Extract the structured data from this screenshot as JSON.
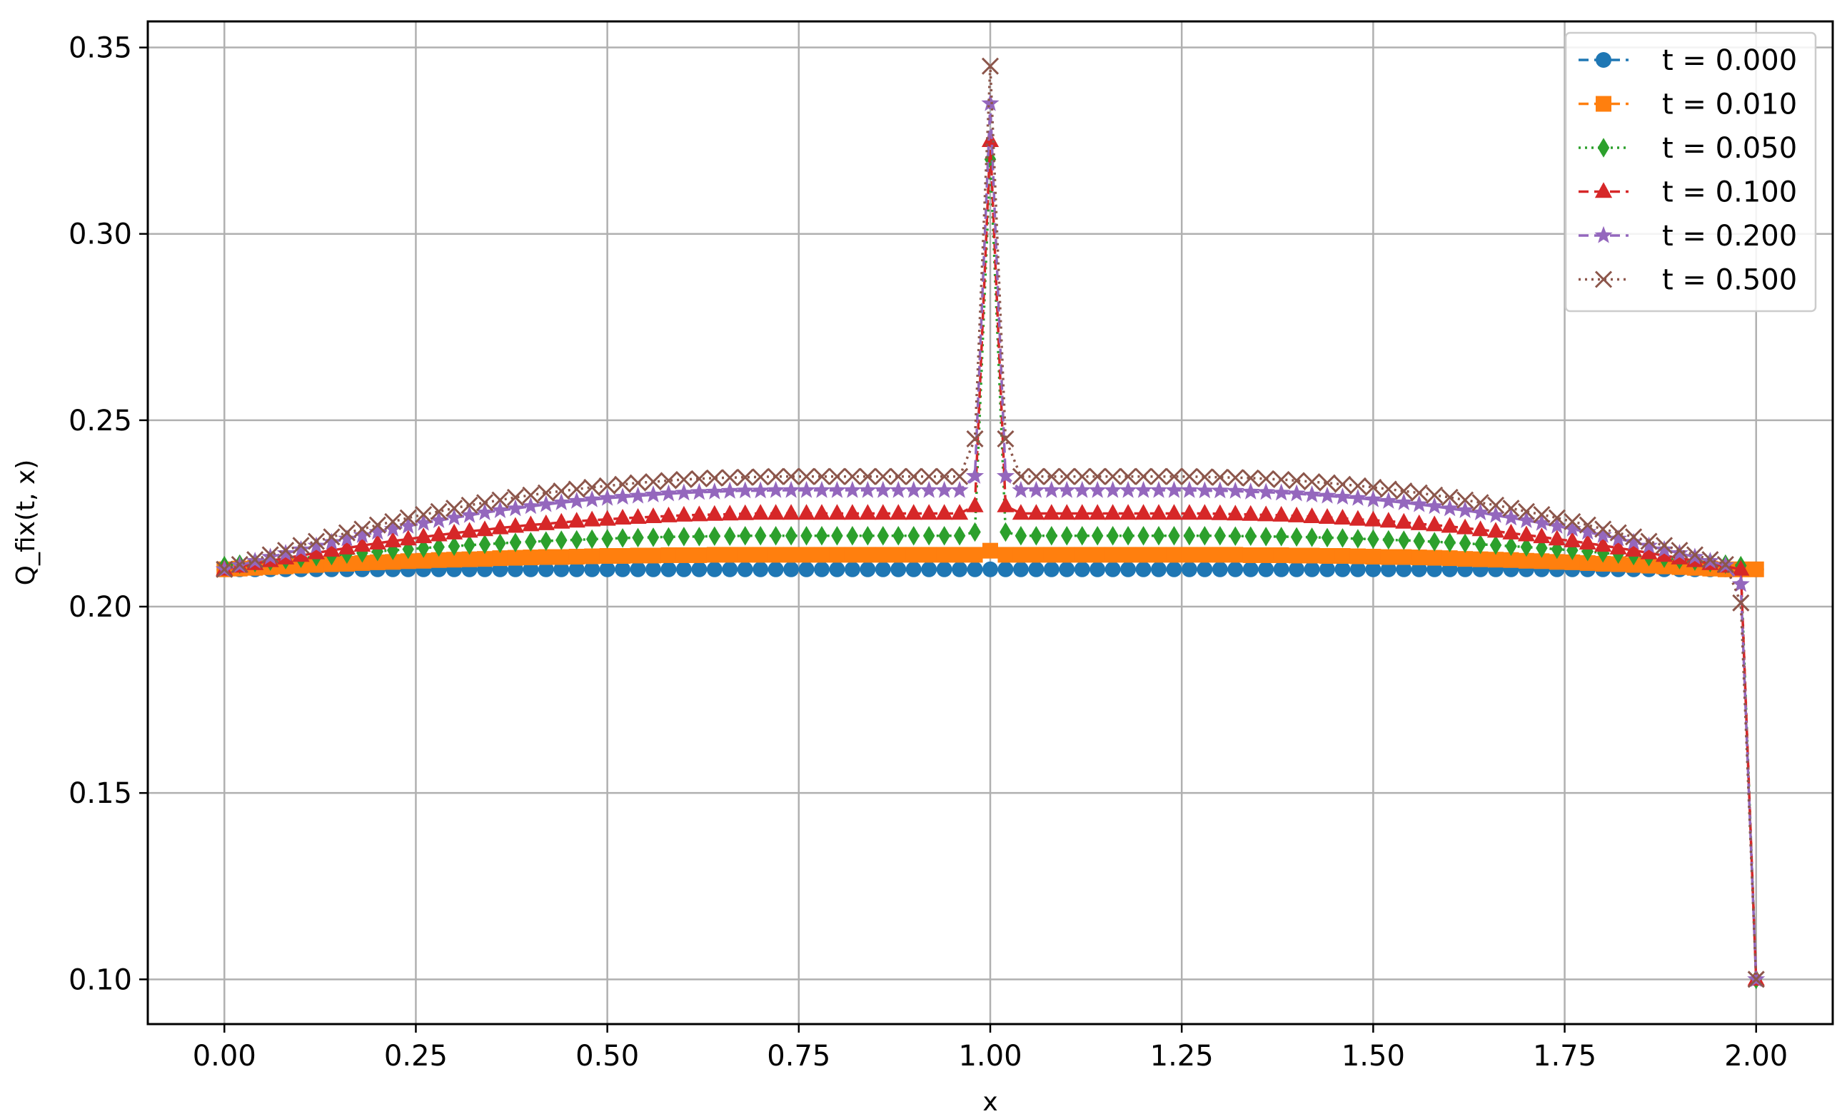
{
  "chart_data": {
    "type": "line",
    "title": "",
    "xlabel": "x",
    "ylabel": "Q_fix(t, x)",
    "xlim": [
      -0.1,
      2.1
    ],
    "ylim": [
      0.088,
      0.357
    ],
    "xticks": [
      0.0,
      0.25,
      0.5,
      0.75,
      1.0,
      1.25,
      1.5,
      1.75,
      2.0
    ],
    "xtick_labels": [
      "0.00",
      "0.25",
      "0.50",
      "0.75",
      "1.00",
      "1.25",
      "1.50",
      "1.75",
      "2.00"
    ],
    "yticks": [
      0.1,
      0.15,
      0.2,
      0.25,
      0.3,
      0.35
    ],
    "ytick_labels": [
      "0.10",
      "0.15",
      "0.20",
      "0.25",
      "0.30",
      "0.35"
    ],
    "grid": true,
    "legend_position": "top-right",
    "x": [
      0.0,
      0.02,
      0.04,
      0.06,
      0.08,
      0.1,
      0.12,
      0.14,
      0.16,
      0.18,
      0.2,
      0.22,
      0.24,
      0.26,
      0.28,
      0.3,
      0.32,
      0.34,
      0.36,
      0.38,
      0.4,
      0.42,
      0.44,
      0.46,
      0.48,
      0.5,
      0.52,
      0.54,
      0.56,
      0.58,
      0.6,
      0.62,
      0.64,
      0.66,
      0.68,
      0.7,
      0.72,
      0.74,
      0.76,
      0.78,
      0.8,
      0.82,
      0.84,
      0.86,
      0.88,
      0.9,
      0.92,
      0.94,
      0.96,
      0.98,
      1.0,
      1.02,
      1.04,
      1.06,
      1.08,
      1.1,
      1.12,
      1.14,
      1.16,
      1.18,
      1.2,
      1.22,
      1.24,
      1.26,
      1.28,
      1.3,
      1.32,
      1.34,
      1.36,
      1.38,
      1.4,
      1.42,
      1.44,
      1.46,
      1.48,
      1.5,
      1.52,
      1.54,
      1.56,
      1.58,
      1.6,
      1.62,
      1.64,
      1.66,
      1.68,
      1.7,
      1.72,
      1.74,
      1.76,
      1.78,
      1.8,
      1.82,
      1.84,
      1.86,
      1.88,
      1.9,
      1.92,
      1.94,
      1.96,
      1.98,
      2.0
    ],
    "series": [
      {
        "name": "t = 0.000",
        "color": "#1f77b4",
        "linestyle": "dashed",
        "marker": "circle",
        "values": [
          0.21,
          0.21,
          0.21,
          0.21,
          0.21,
          0.21,
          0.21,
          0.21,
          0.21,
          0.21,
          0.21,
          0.21,
          0.21,
          0.21,
          0.21,
          0.21,
          0.21,
          0.21,
          0.21,
          0.21,
          0.21,
          0.21,
          0.21,
          0.21,
          0.21,
          0.21,
          0.21,
          0.21,
          0.21,
          0.21,
          0.21,
          0.21,
          0.21,
          0.21,
          0.21,
          0.21,
          0.21,
          0.21,
          0.21,
          0.21,
          0.21,
          0.21,
          0.21,
          0.21,
          0.21,
          0.21,
          0.21,
          0.21,
          0.21,
          0.21,
          0.21,
          0.21,
          0.21,
          0.21,
          0.21,
          0.21,
          0.21,
          0.21,
          0.21,
          0.21,
          0.21,
          0.21,
          0.21,
          0.21,
          0.21,
          0.21,
          0.21,
          0.21,
          0.21,
          0.21,
          0.21,
          0.21,
          0.21,
          0.21,
          0.21,
          0.21,
          0.21,
          0.21,
          0.21,
          0.21,
          0.21,
          0.21,
          0.21,
          0.21,
          0.21,
          0.21,
          0.21,
          0.21,
          0.21,
          0.21,
          0.21,
          0.21,
          0.21,
          0.21,
          0.21,
          0.21,
          0.21,
          0.21,
          0.21,
          0.21,
          0.21
        ]
      },
      {
        "name": "t = 0.010",
        "color": "#ff7f0e",
        "linestyle": "dashed",
        "marker": "square",
        "values": [
          0.21,
          0.2102,
          0.2104,
          0.2106,
          0.2108,
          0.211,
          0.2112,
          0.2114,
          0.2115,
          0.2117,
          0.2119,
          0.212,
          0.2122,
          0.2123,
          0.2125,
          0.2126,
          0.2127,
          0.2128,
          0.213,
          0.2131,
          0.2132,
          0.2133,
          0.2133,
          0.2134,
          0.2135,
          0.2136,
          0.2136,
          0.2137,
          0.2137,
          0.2138,
          0.2138,
          0.2138,
          0.2139,
          0.2139,
          0.2139,
          0.2139,
          0.2139,
          0.2139,
          0.2139,
          0.2139,
          0.2139,
          0.2139,
          0.2139,
          0.2139,
          0.2139,
          0.2139,
          0.2139,
          0.2139,
          0.2139,
          0.2139,
          0.215,
          0.2139,
          0.2139,
          0.2139,
          0.2139,
          0.2139,
          0.2139,
          0.2139,
          0.2139,
          0.2139,
          0.2139,
          0.2139,
          0.2139,
          0.2139,
          0.2139,
          0.2139,
          0.2139,
          0.2138,
          0.2138,
          0.2138,
          0.2137,
          0.2137,
          0.2136,
          0.2136,
          0.2135,
          0.2134,
          0.2133,
          0.2133,
          0.2132,
          0.2131,
          0.213,
          0.2128,
          0.2127,
          0.2126,
          0.2125,
          0.2123,
          0.2122,
          0.212,
          0.2119,
          0.2117,
          0.2115,
          0.2114,
          0.2112,
          0.211,
          0.2108,
          0.2106,
          0.2104,
          0.2102,
          0.21,
          0.21,
          0.21
        ]
      },
      {
        "name": "t = 0.050",
        "color": "#2ca02c",
        "linestyle": "dotted",
        "marker": "diamond",
        "values": [
          0.211,
          0.2114,
          0.2118,
          0.2122,
          0.2126,
          0.213,
          0.2134,
          0.2137,
          0.2141,
          0.2144,
          0.2148,
          0.2151,
          0.2154,
          0.2157,
          0.216,
          0.2162,
          0.2165,
          0.2167,
          0.217,
          0.2172,
          0.2174,
          0.2176,
          0.2178,
          0.2179,
          0.2181,
          0.2182,
          0.2184,
          0.2185,
          0.2186,
          0.2187,
          0.2188,
          0.2188,
          0.2189,
          0.2189,
          0.219,
          0.219,
          0.219,
          0.219,
          0.219,
          0.219,
          0.219,
          0.219,
          0.219,
          0.219,
          0.219,
          0.219,
          0.219,
          0.219,
          0.219,
          0.22,
          0.32,
          0.22,
          0.219,
          0.219,
          0.219,
          0.219,
          0.219,
          0.219,
          0.219,
          0.219,
          0.219,
          0.219,
          0.219,
          0.219,
          0.219,
          0.219,
          0.2189,
          0.2189,
          0.2188,
          0.2188,
          0.2187,
          0.2186,
          0.2185,
          0.2184,
          0.2182,
          0.2181,
          0.2179,
          0.2178,
          0.2176,
          0.2174,
          0.2172,
          0.217,
          0.2167,
          0.2165,
          0.2162,
          0.216,
          0.2157,
          0.2154,
          0.2151,
          0.2148,
          0.2144,
          0.2141,
          0.2137,
          0.2134,
          0.213,
          0.2126,
          0.2122,
          0.2118,
          0.2114,
          0.211,
          0.1
        ]
      },
      {
        "name": "t = 0.100",
        "color": "#d62728",
        "linestyle": "dashed",
        "marker": "triangle",
        "values": [
          0.21,
          0.2108,
          0.2115,
          0.2123,
          0.213,
          0.2137,
          0.2144,
          0.2151,
          0.2157,
          0.2164,
          0.217,
          0.2176,
          0.2181,
          0.2187,
          0.2192,
          0.2197,
          0.2202,
          0.2206,
          0.2211,
          0.2215,
          0.2219,
          0.2222,
          0.2226,
          0.2229,
          0.2232,
          0.2234,
          0.2237,
          0.2239,
          0.2241,
          0.2243,
          0.2245,
          0.2246,
          0.2247,
          0.2248,
          0.2249,
          0.225,
          0.225,
          0.225,
          0.225,
          0.225,
          0.225,
          0.225,
          0.225,
          0.225,
          0.225,
          0.225,
          0.225,
          0.225,
          0.225,
          0.227,
          0.325,
          0.227,
          0.225,
          0.225,
          0.225,
          0.225,
          0.225,
          0.225,
          0.225,
          0.225,
          0.225,
          0.225,
          0.225,
          0.225,
          0.225,
          0.2249,
          0.2248,
          0.2247,
          0.2246,
          0.2245,
          0.2243,
          0.2241,
          0.2239,
          0.2237,
          0.2234,
          0.2232,
          0.2229,
          0.2226,
          0.2222,
          0.2219,
          0.2215,
          0.2211,
          0.2206,
          0.2202,
          0.2197,
          0.2192,
          0.2187,
          0.2181,
          0.2176,
          0.217,
          0.2164,
          0.2157,
          0.2151,
          0.2144,
          0.2137,
          0.213,
          0.2123,
          0.2115,
          0.2108,
          0.21,
          0.1
        ]
      },
      {
        "name": "t = 0.200",
        "color": "#9467bd",
        "linestyle": "dashed",
        "marker": "star",
        "values": [
          0.21,
          0.2111,
          0.2122,
          0.2133,
          0.2143,
          0.2153,
          0.2163,
          0.2173,
          0.2182,
          0.2191,
          0.22,
          0.2208,
          0.2216,
          0.2224,
          0.2231,
          0.2238,
          0.2245,
          0.2252,
          0.2258,
          0.2263,
          0.2269,
          0.2274,
          0.2279,
          0.2283,
          0.2287,
          0.2291,
          0.2294,
          0.2297,
          0.23,
          0.2303,
          0.2305,
          0.2307,
          0.2308,
          0.231,
          0.2311,
          0.2311,
          0.2312,
          0.2312,
          0.2312,
          0.2312,
          0.2312,
          0.2312,
          0.2312,
          0.2312,
          0.2312,
          0.2312,
          0.2312,
          0.2312,
          0.2312,
          0.235,
          0.335,
          0.235,
          0.2312,
          0.2312,
          0.2312,
          0.2312,
          0.2312,
          0.2312,
          0.2312,
          0.2312,
          0.2312,
          0.2312,
          0.2312,
          0.2312,
          0.2311,
          0.2311,
          0.231,
          0.2308,
          0.2307,
          0.2305,
          0.2303,
          0.23,
          0.2297,
          0.2294,
          0.2291,
          0.2287,
          0.2283,
          0.2279,
          0.2274,
          0.2269,
          0.2263,
          0.2258,
          0.2252,
          0.2245,
          0.2238,
          0.2231,
          0.2224,
          0.2216,
          0.2208,
          0.22,
          0.2191,
          0.2182,
          0.2173,
          0.2163,
          0.2153,
          0.2143,
          0.2133,
          0.2122,
          0.2111,
          0.206,
          0.1
        ]
      },
      {
        "name": "t = 0.500",
        "color": "#8c564b",
        "linestyle": "dotted",
        "marker": "x",
        "values": [
          0.21,
          0.2113,
          0.2126,
          0.2139,
          0.2151,
          0.2164,
          0.2175,
          0.2187,
          0.2198,
          0.2208,
          0.2219,
          0.2228,
          0.2238,
          0.2247,
          0.2255,
          0.2264,
          0.2272,
          0.2279,
          0.2286,
          0.2293,
          0.2299,
          0.2305,
          0.231,
          0.2315,
          0.232,
          0.2324,
          0.2328,
          0.2332,
          0.2335,
          0.2338,
          0.2341,
          0.2343,
          0.2345,
          0.2346,
          0.2347,
          0.2348,
          0.2349,
          0.2349,
          0.2349,
          0.2349,
          0.2349,
          0.2349,
          0.2349,
          0.2349,
          0.2349,
          0.2349,
          0.2349,
          0.2349,
          0.2349,
          0.245,
          0.345,
          0.245,
          0.2349,
          0.2349,
          0.2349,
          0.2349,
          0.2349,
          0.2349,
          0.2349,
          0.2349,
          0.2349,
          0.2349,
          0.2349,
          0.2349,
          0.2348,
          0.2347,
          0.2346,
          0.2345,
          0.2343,
          0.2341,
          0.2338,
          0.2335,
          0.2332,
          0.2328,
          0.2324,
          0.232,
          0.2315,
          0.231,
          0.2305,
          0.2299,
          0.2293,
          0.2286,
          0.2279,
          0.2272,
          0.2264,
          0.2255,
          0.2247,
          0.2238,
          0.2228,
          0.2219,
          0.2208,
          0.2198,
          0.2187,
          0.2175,
          0.2164,
          0.2151,
          0.2139,
          0.2126,
          0.2113,
          0.201,
          0.1
        ]
      }
    ]
  }
}
